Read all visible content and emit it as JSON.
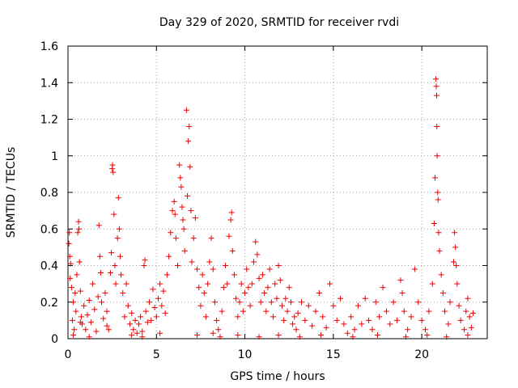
{
  "chart_data": {
    "type": "scatter",
    "title": "Day 329 of 2020, SRMTID for receiver rvdi",
    "xlabel": "GPS time / hours",
    "ylabel": "SRMTID / TECUs",
    "xlim": [
      0,
      23.7
    ],
    "ylim": [
      0,
      1.6
    ],
    "xticks": [
      0,
      5,
      10,
      15,
      20
    ],
    "xtick_labels": [
      "0",
      "5",
      "10",
      "15",
      "20"
    ],
    "yticks": [
      0,
      0.2,
      0.4,
      0.6,
      0.8,
      1,
      1.2,
      1.4,
      1.6
    ],
    "ytick_labels": [
      "0",
      "0.2",
      "0.4",
      "0.6",
      "0.8",
      "1",
      "1.2",
      "1.4",
      "1.6"
    ],
    "grid": true,
    "marker": "+",
    "color": "#ee0000",
    "series": [
      {
        "name": "rvdi",
        "points": [
          [
            0.05,
            0.52
          ],
          [
            0.08,
            0.58
          ],
          [
            0.1,
            0.45
          ],
          [
            0.12,
            0.33
          ],
          [
            0.15,
            0.41
          ],
          [
            0.2,
            0.28
          ],
          [
            0.25,
            0.1
          ],
          [
            0.3,
            0.2
          ],
          [
            0.35,
            0.05
          ],
          [
            0.4,
            0.25
          ],
          [
            0.45,
            0.15
          ],
          [
            0.5,
            0.35
          ],
          [
            0.55,
            0.58
          ],
          [
            0.6,
            0.64
          ],
          [
            0.62,
            0.6
          ],
          [
            0.65,
            0.42
          ],
          [
            0.7,
            0.26
          ],
          [
            0.75,
            0.12
          ],
          [
            0.8,
            0.08
          ],
          [
            0.9,
            0.18
          ],
          [
            1.0,
            0.05
          ],
          [
            1.1,
            0.13
          ],
          [
            1.2,
            0.21
          ],
          [
            1.3,
            0.09
          ],
          [
            1.4,
            0.3
          ],
          [
            1.5,
            0.16
          ],
          [
            1.6,
            0.04
          ],
          [
            1.7,
            0.23
          ],
          [
            1.75,
            0.62
          ],
          [
            1.8,
            0.45
          ],
          [
            1.85,
            0.36
          ],
          [
            1.9,
            0.2
          ],
          [
            2.0,
            0.11
          ],
          [
            2.1,
            0.25
          ],
          [
            2.2,
            0.15
          ],
          [
            2.3,
            0.05
          ],
          [
            2.4,
            0.36
          ],
          [
            2.45,
            0.47
          ],
          [
            2.5,
            0.93
          ],
          [
            2.52,
            0.95
          ],
          [
            2.55,
            0.91
          ],
          [
            2.6,
            0.68
          ],
          [
            2.65,
            0.4
          ],
          [
            2.7,
            0.3
          ],
          [
            2.8,
            0.55
          ],
          [
            2.85,
            0.77
          ],
          [
            2.9,
            0.6
          ],
          [
            2.95,
            0.45
          ],
          [
            3.0,
            0.35
          ],
          [
            3.1,
            0.25
          ],
          [
            3.2,
            0.12
          ],
          [
            3.3,
            0.3
          ],
          [
            3.4,
            0.18
          ],
          [
            3.5,
            0.08
          ],
          [
            3.6,
            0.14
          ],
          [
            3.7,
            0.05
          ],
          [
            3.8,
            0.1
          ],
          [
            3.9,
            0.03
          ],
          [
            4.0,
            0.08
          ],
          [
            4.1,
            0.12
          ],
          [
            4.2,
            0.04
          ],
          [
            4.3,
            0.4
          ],
          [
            4.35,
            0.43
          ],
          [
            4.4,
            0.15
          ],
          [
            4.5,
            0.09
          ],
          [
            4.6,
            0.2
          ],
          [
            4.7,
            0.1
          ],
          [
            4.8,
            0.27
          ],
          [
            4.9,
            0.17
          ],
          [
            5.0,
            0.12
          ],
          [
            5.1,
            0.22
          ],
          [
            5.2,
            0.3
          ],
          [
            5.3,
            0.18
          ],
          [
            5.4,
            0.26
          ],
          [
            5.5,
            0.14
          ],
          [
            5.6,
            0.35
          ],
          [
            5.7,
            0.45
          ],
          [
            5.8,
            0.58
          ],
          [
            5.9,
            0.7
          ],
          [
            6.0,
            0.75
          ],
          [
            6.05,
            0.68
          ],
          [
            6.1,
            0.55
          ],
          [
            6.2,
            0.4
          ],
          [
            6.3,
            0.95
          ],
          [
            6.35,
            0.88
          ],
          [
            6.4,
            0.83
          ],
          [
            6.45,
            0.72
          ],
          [
            6.5,
            0.65
          ],
          [
            6.55,
            0.6
          ],
          [
            6.6,
            0.48
          ],
          [
            6.7,
            1.25
          ],
          [
            6.75,
            0.78
          ],
          [
            6.8,
            1.08
          ],
          [
            6.85,
            1.16
          ],
          [
            6.9,
            0.94
          ],
          [
            6.95,
            0.7
          ],
          [
            7.0,
            0.42
          ],
          [
            7.1,
            0.55
          ],
          [
            7.2,
            0.66
          ],
          [
            7.3,
            0.38
          ],
          [
            7.4,
            0.28
          ],
          [
            7.5,
            0.18
          ],
          [
            7.6,
            0.35
          ],
          [
            7.7,
            0.25
          ],
          [
            7.8,
            0.12
          ],
          [
            7.9,
            0.3
          ],
          [
            8.0,
            0.42
          ],
          [
            8.1,
            0.55
          ],
          [
            8.2,
            0.38
          ],
          [
            8.3,
            0.2
          ],
          [
            8.4,
            0.1
          ],
          [
            8.5,
            0.05
          ],
          [
            8.6,
            0.01
          ],
          [
            8.7,
            0.15
          ],
          [
            8.8,
            0.28
          ],
          [
            8.9,
            0.4
          ],
          [
            9.0,
            0.3
          ],
          [
            9.1,
            0.56
          ],
          [
            9.2,
            0.65
          ],
          [
            9.25,
            0.69
          ],
          [
            9.3,
            0.48
          ],
          [
            9.4,
            0.35
          ],
          [
            9.5,
            0.22
          ],
          [
            9.6,
            0.12
          ],
          [
            9.7,
            0.2
          ],
          [
            9.8,
            0.3
          ],
          [
            9.9,
            0.15
          ],
          [
            10.0,
            0.25
          ],
          [
            10.1,
            0.38
          ],
          [
            10.2,
            0.28
          ],
          [
            10.3,
            0.18
          ],
          [
            10.4,
            0.3
          ],
          [
            10.5,
            0.42
          ],
          [
            10.6,
            0.53
          ],
          [
            10.7,
            0.46
          ],
          [
            10.8,
            0.33
          ],
          [
            10.9,
            0.2
          ],
          [
            11.0,
            0.35
          ],
          [
            11.1,
            0.25
          ],
          [
            11.2,
            0.15
          ],
          [
            11.3,
            0.28
          ],
          [
            11.4,
            0.38
          ],
          [
            11.5,
            0.2
          ],
          [
            11.6,
            0.12
          ],
          [
            11.7,
            0.3
          ],
          [
            11.8,
            0.22
          ],
          [
            11.9,
            0.4
          ],
          [
            12.0,
            0.32
          ],
          [
            12.1,
            0.18
          ],
          [
            12.2,
            0.1
          ],
          [
            12.3,
            0.22
          ],
          [
            12.4,
            0.15
          ],
          [
            12.5,
            0.28
          ],
          [
            12.6,
            0.2
          ],
          [
            12.7,
            0.08
          ],
          [
            12.8,
            0.12
          ],
          [
            12.9,
            0.05
          ],
          [
            13.0,
            0.14
          ],
          [
            13.2,
            0.2
          ],
          [
            13.4,
            0.1
          ],
          [
            13.6,
            0.18
          ],
          [
            13.8,
            0.07
          ],
          [
            14.0,
            0.15
          ],
          [
            14.2,
            0.25
          ],
          [
            14.4,
            0.12
          ],
          [
            14.6,
            0.06
          ],
          [
            14.8,
            0.3
          ],
          [
            15.0,
            0.18
          ],
          [
            15.2,
            0.1
          ],
          [
            15.4,
            0.22
          ],
          [
            15.6,
            0.08
          ],
          [
            15.8,
            0.03
          ],
          [
            16.0,
            0.12
          ],
          [
            16.2,
            0.05
          ],
          [
            16.4,
            0.18
          ],
          [
            16.6,
            0.08
          ],
          [
            16.8,
            0.22
          ],
          [
            17.0,
            0.1
          ],
          [
            17.2,
            0.05
          ],
          [
            17.4,
            0.2
          ],
          [
            17.6,
            0.12
          ],
          [
            17.8,
            0.28
          ],
          [
            18.0,
            0.15
          ],
          [
            18.2,
            0.08
          ],
          [
            18.4,
            0.2
          ],
          [
            18.6,
            0.1
          ],
          [
            18.8,
            0.32
          ],
          [
            18.9,
            0.25
          ],
          [
            19.0,
            0.15
          ],
          [
            19.2,
            0.05
          ],
          [
            19.4,
            0.12
          ],
          [
            19.6,
            0.38
          ],
          [
            19.8,
            0.2
          ],
          [
            20.0,
            0.1
          ],
          [
            20.2,
            0.05
          ],
          [
            20.4,
            0.15
          ],
          [
            20.6,
            0.3
          ],
          [
            20.7,
            0.63
          ],
          [
            20.75,
            0.88
          ],
          [
            20.8,
            1.42
          ],
          [
            20.82,
            1.38
          ],
          [
            20.84,
            1.33
          ],
          [
            20.85,
            1.16
          ],
          [
            20.87,
            1.0
          ],
          [
            20.9,
            0.8
          ],
          [
            20.92,
            0.76
          ],
          [
            20.95,
            0.58
          ],
          [
            21.0,
            0.48
          ],
          [
            21.1,
            0.35
          ],
          [
            21.2,
            0.25
          ],
          [
            21.3,
            0.15
          ],
          [
            21.5,
            0.08
          ],
          [
            21.6,
            0.2
          ],
          [
            21.8,
            0.42
          ],
          [
            21.85,
            0.58
          ],
          [
            21.9,
            0.5
          ],
          [
            21.95,
            0.4
          ],
          [
            22.0,
            0.3
          ],
          [
            22.1,
            0.18
          ],
          [
            22.2,
            0.1
          ],
          [
            22.4,
            0.05
          ],
          [
            22.5,
            0.15
          ],
          [
            22.6,
            0.22
          ],
          [
            22.7,
            0.12
          ],
          [
            22.8,
            0.06
          ],
          [
            22.9,
            0.14
          ],
          [
            0.3,
            0.02
          ],
          [
            1.2,
            0.01
          ],
          [
            3.6,
            0.02
          ],
          [
            4.2,
            0.01
          ],
          [
            5.2,
            0.03
          ],
          [
            7.3,
            0.02
          ],
          [
            8.2,
            0.03
          ],
          [
            9.6,
            0.02
          ],
          [
            10.8,
            0.01
          ],
          [
            11.9,
            0.02
          ],
          [
            13.1,
            0.01
          ],
          [
            14.3,
            0.02
          ],
          [
            16.1,
            0.01
          ],
          [
            17.5,
            0.02
          ],
          [
            19.1,
            0.01
          ],
          [
            20.3,
            0.02
          ],
          [
            21.4,
            0.01
          ],
          [
            22.6,
            0.02
          ],
          [
            0.7,
            0.09
          ],
          [
            2.2,
            0.07
          ]
        ]
      }
    ]
  }
}
